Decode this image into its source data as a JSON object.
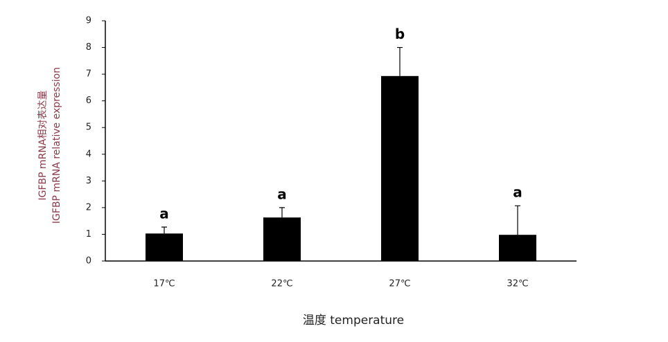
{
  "chart_data": {
    "type": "bar",
    "y_label": [
      "IGFBP mRNA相对表达量",
      "IGFBP mRNA relative expression"
    ],
    "x_label": "温度 temperature",
    "categories": [
      "17℃",
      "22℃",
      "27℃",
      "32℃"
    ],
    "values": [
      1.03,
      1.63,
      6.93,
      0.98
    ],
    "errors": [
      0.24,
      0.37,
      1.07,
      1.09
    ],
    "annotations": [
      "a",
      "a",
      "b",
      "a"
    ],
    "color": "#000000",
    "ylim": [
      0,
      9
    ],
    "yticks": [
      0,
      1,
      2,
      3,
      4,
      5,
      6,
      7,
      8,
      9
    ],
    "grid": false
  }
}
